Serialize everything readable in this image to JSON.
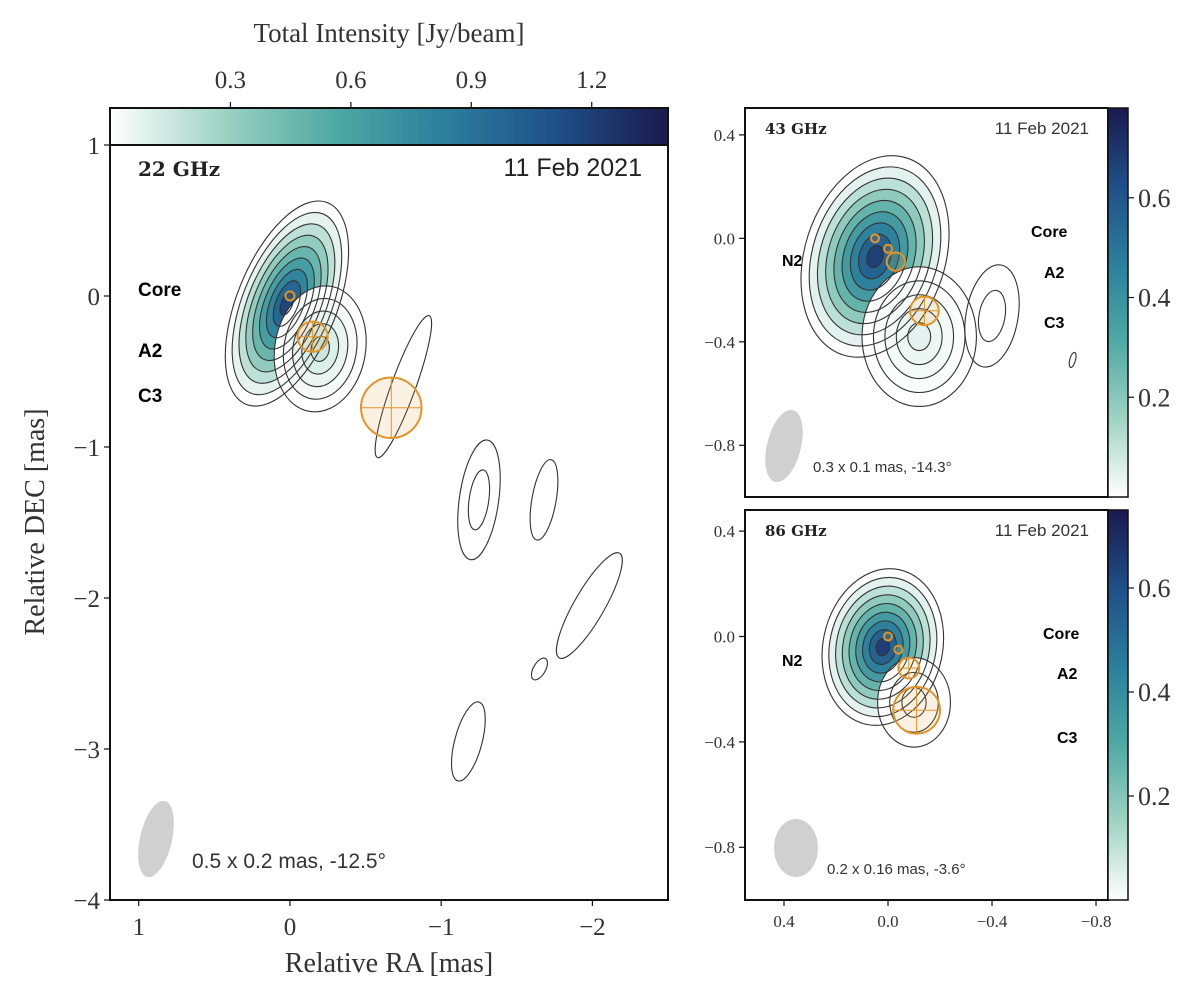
{
  "chart_data": [
    {
      "type": "heatmap",
      "panel": "22 GHz",
      "band_label": "22 GHz",
      "date": "11 Feb 2021",
      "xlabel": "Relative RA [mas]",
      "ylabel": "Relative DEC [mas]",
      "xlim": [
        1.19,
        -2.5
      ],
      "ylim": [
        -4,
        1
      ],
      "xticks": [
        1,
        0,
        -1,
        -2
      ],
      "xtick_labels": [
        "1",
        "0",
        "−1",
        "−2"
      ],
      "yticks": [
        1,
        0,
        -1,
        -2,
        -3,
        -4
      ],
      "ytick_labels": [
        "1",
        "0",
        "−1",
        "−2",
        "−3",
        "−4"
      ],
      "colorbar": {
        "label": "Total Intensity [Jy/beam]",
        "orientation": "horizontal",
        "location": "top",
        "range": [
          0,
          1.39
        ],
        "ticks": [
          0.3,
          0.6,
          0.9,
          1.2
        ],
        "tick_labels": [
          "0.3",
          "0.6",
          "0.9",
          "1.2"
        ]
      },
      "colormap": [
        "#ffffff",
        "#9fd3c3",
        "#4fa9a4",
        "#2b7f9c",
        "#1f4f88",
        "#1a1a4e"
      ],
      "beam_label": "0.5 x 0.2 mas, -12.5°",
      "component_labels": [
        "Core",
        "A2",
        "C3"
      ],
      "components": [
        {
          "name": "Core",
          "ra": 0.0,
          "dec": 0.0,
          "radius": 0.03
        },
        {
          "name": "A2",
          "ra": -0.15,
          "dec": -0.27,
          "radius": 0.1
        },
        {
          "name": "C3",
          "ra": -0.67,
          "dec": -0.74,
          "radius": 0.2
        }
      ],
      "emission": [
        {
          "ra": 0.02,
          "dec": -0.05,
          "a": 0.72,
          "b": 0.33,
          "angle": 22,
          "levels": 9,
          "peak": 1.35
        },
        {
          "ra": -0.2,
          "dec": -0.35,
          "a": 0.42,
          "b": 0.3,
          "angle": 10,
          "levels": 5,
          "peak": 0.2
        },
        {
          "ra": -0.75,
          "dec": -0.6,
          "a": 0.5,
          "b": 0.08,
          "angle": 20,
          "levels": 1,
          "peak": 0.0
        },
        {
          "ra": -1.25,
          "dec": -1.35,
          "a": 0.4,
          "b": 0.13,
          "angle": 8,
          "levels": 2,
          "peak": 0.0
        },
        {
          "ra": -1.68,
          "dec": -1.35,
          "a": 0.27,
          "b": 0.08,
          "angle": 10,
          "levels": 1,
          "peak": 0.0
        },
        {
          "ra": -1.98,
          "dec": -2.05,
          "a": 0.4,
          "b": 0.1,
          "angle": 30,
          "levels": 1,
          "peak": 0.0
        },
        {
          "ra": -1.65,
          "dec": -2.47,
          "a": 0.08,
          "b": 0.04,
          "angle": 30,
          "levels": 1,
          "peak": 0.0
        },
        {
          "ra": -1.18,
          "dec": -2.95,
          "a": 0.27,
          "b": 0.09,
          "angle": 15,
          "levels": 1,
          "peak": 0.0
        }
      ]
    },
    {
      "type": "heatmap",
      "panel": "43 GHz",
      "band_label": "43 GHz",
      "date": "11 Feb 2021",
      "xlim": [
        0.55,
        -0.846
      ],
      "ylim": [
        -1.0,
        0.504
      ],
      "yticks": [
        0.4,
        0.0,
        -0.4,
        -0.8
      ],
      "ytick_labels": [
        "0.4",
        "0.0",
        "−0.4",
        "−0.8"
      ],
      "colorbar": {
        "orientation": "vertical",
        "location": "right",
        "range": [
          0,
          0.78
        ],
        "ticks": [
          0.2,
          0.4,
          0.6
        ],
        "tick_labels": [
          "0.2",
          "0.4",
          "0.6"
        ]
      },
      "beam_label": "0.3 x 0.1 mas, -14.3°",
      "component_labels": [
        "N2",
        "Core",
        "A2",
        "C3"
      ],
      "components": [
        {
          "name": "Core",
          "ra": 0.05,
          "dec": 0.0,
          "radius": 0.012
        },
        {
          "name": "",
          "ra": -0.0,
          "dec": -0.04,
          "radius": 0.012
        },
        {
          "name": "A2",
          "ra": -0.03,
          "dec": -0.09,
          "radius": 0.035
        },
        {
          "name": "C3",
          "ra": -0.14,
          "dec": -0.28,
          "radius": 0.055
        }
      ],
      "emission": [
        {
          "ra": 0.05,
          "dec": -0.07,
          "a": 0.4,
          "b": 0.27,
          "angle": 18,
          "levels": 9,
          "peak": 0.78
        },
        {
          "ra": -0.12,
          "dec": -0.38,
          "a": 0.27,
          "b": 0.22,
          "angle": 0,
          "levels": 5,
          "peak": 0.06
        },
        {
          "ra": -0.4,
          "dec": -0.3,
          "a": 0.2,
          "b": 0.1,
          "angle": 10,
          "levels": 2,
          "peak": 0.0
        },
        {
          "ra": -0.71,
          "dec": -0.47,
          "a": 0.03,
          "b": 0.011,
          "angle": 15,
          "levels": 1,
          "peak": 0.0
        }
      ]
    },
    {
      "type": "heatmap",
      "panel": "86 GHz",
      "band_label": "86 GHz",
      "date": "11 Feb 2021",
      "xlim": [
        0.55,
        -0.846
      ],
      "ylim": [
        -1.0,
        0.48
      ],
      "xticks": [
        0.4,
        0.0,
        -0.4,
        -0.8
      ],
      "xtick_labels": [
        "0.4",
        "0.0",
        "−0.4",
        "−0.8"
      ],
      "yticks": [
        0.4,
        0.0,
        -0.4,
        -0.8
      ],
      "ytick_labels": [
        "0.4",
        "0.0",
        "−0.4",
        "−0.8"
      ],
      "colorbar": {
        "orientation": "vertical",
        "location": "right",
        "range": [
          0,
          0.75
        ],
        "ticks": [
          0.2,
          0.4,
          0.6
        ],
        "tick_labels": [
          "0.2",
          "0.4",
          "0.6"
        ]
      },
      "beam_label": "0.2 x 0.16 mas, -3.6°",
      "component_labels": [
        "N2",
        "Core",
        "A2",
        "C3"
      ],
      "components": [
        {
          "name": "Core",
          "ra": 0.0,
          "dec": 0.0,
          "radius": 0.012
        },
        {
          "name": "",
          "ra": -0.04,
          "dec": -0.05,
          "radius": 0.014
        },
        {
          "name": "A2",
          "ra": -0.08,
          "dec": -0.12,
          "radius": 0.04
        },
        {
          "name": "C3",
          "ra": -0.11,
          "dec": -0.28,
          "radius": 0.09
        }
      ],
      "emission": [
        {
          "ra": 0.02,
          "dec": -0.04,
          "a": 0.3,
          "b": 0.23,
          "angle": 12,
          "levels": 9,
          "peak": 0.75
        },
        {
          "ra": -0.1,
          "dec": -0.25,
          "a": 0.17,
          "b": 0.14,
          "angle": 0,
          "levels": 3,
          "peak": 0.0
        }
      ]
    }
  ]
}
